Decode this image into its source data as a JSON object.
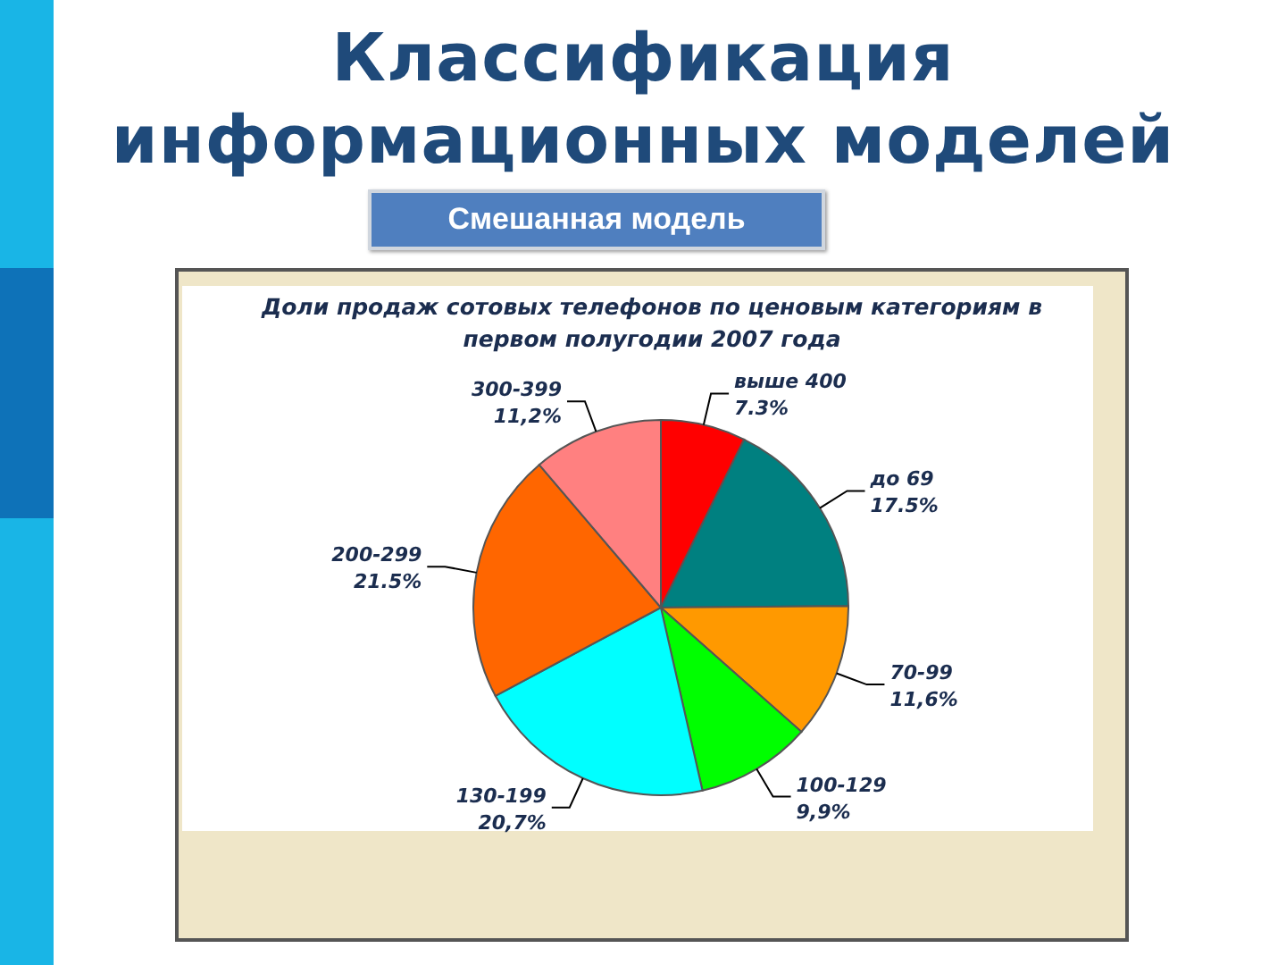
{
  "chart_data": {
    "type": "pie",
    "title": "Доли продаж сотовых телефонов по ценовым категориям в первом полугодии 2007 года",
    "annotations": [
      "Классификация информационных моделей",
      "Смешанная модель"
    ],
    "categories": [
      "выше 400",
      "до 69",
      "70-99",
      "100-129",
      "130-199",
      "200-299",
      "300-399"
    ],
    "values": [
      7.3,
      17.5,
      11.6,
      9.9,
      20.7,
      21.5,
      11.2
    ],
    "value_labels": [
      "7.3%",
      "17.5%",
      "11,6%",
      "9,9%",
      "20,7%",
      "21.5%",
      "11,2%"
    ],
    "colors": [
      "#ff0000",
      "#008080",
      "#ff9900",
      "#00ff00",
      "#00ffff",
      "#ff6600",
      "#ff8080"
    ]
  }
}
